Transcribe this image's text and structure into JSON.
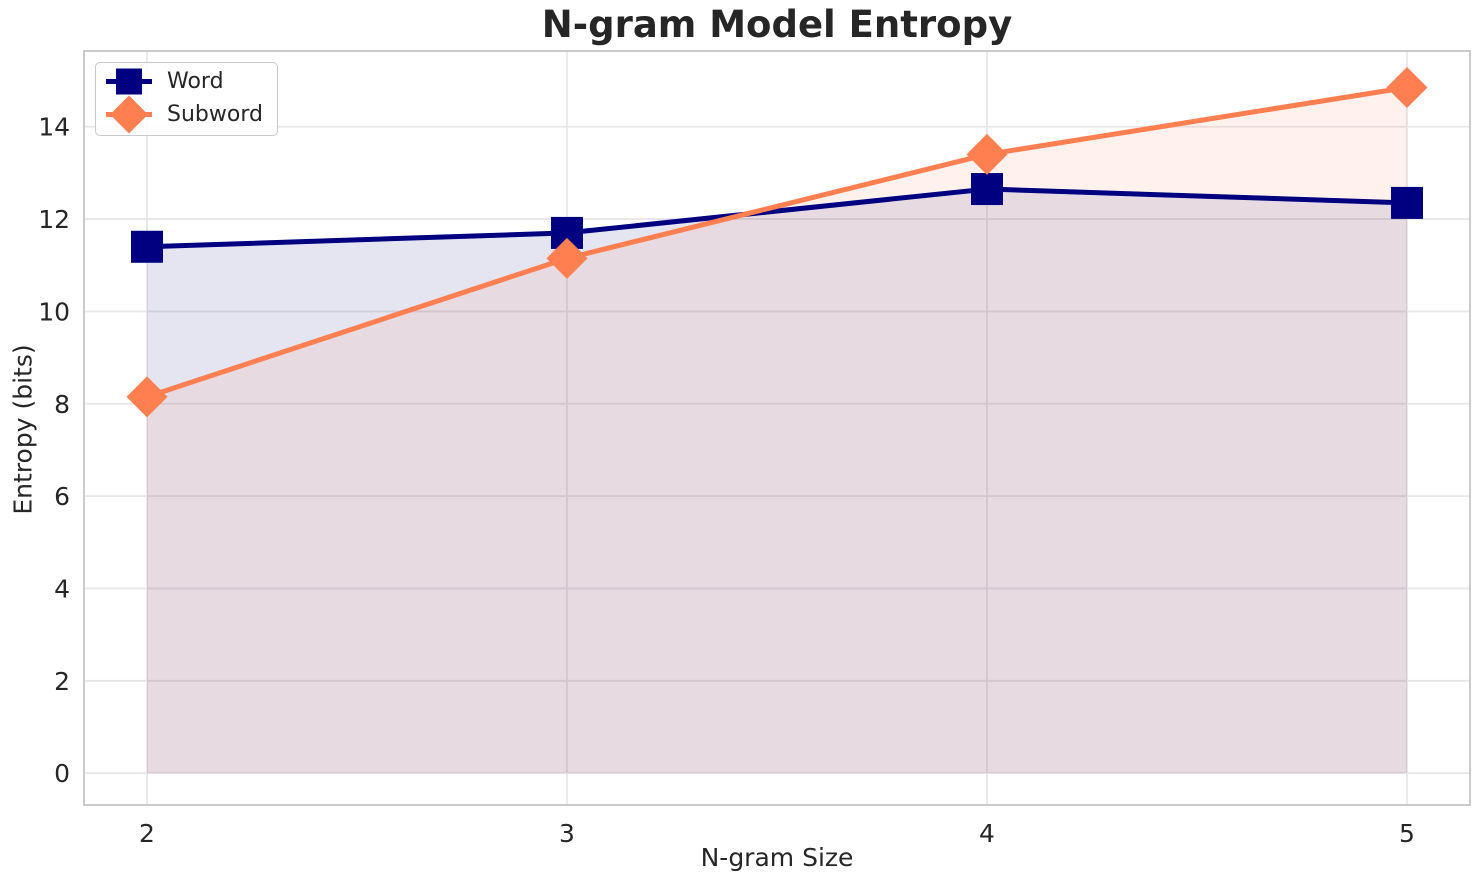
{
  "title": "N-gram Model Entropy",
  "chart_data": {
    "type": "line",
    "title": "N-gram Model Entropy",
    "xlabel": "N-gram Size",
    "ylabel": "Entropy (bits)",
    "x": [
      2,
      3,
      4,
      5
    ],
    "series": [
      {
        "name": "Word",
        "values": [
          11.4,
          11.7,
          12.65,
          12.35
        ],
        "color": "#000080",
        "marker": "square"
      },
      {
        "name": "Subword",
        "values": [
          8.15,
          11.15,
          13.4,
          14.85
        ],
        "color": "#ff7f50",
        "marker": "diamond"
      }
    ],
    "xticks": [
      2,
      3,
      4,
      5
    ],
    "yticks": [
      0,
      2,
      4,
      6,
      8,
      10,
      12,
      14
    ],
    "xlim": [
      1.85,
      5.15
    ],
    "ylim": [
      -0.69,
      15.64
    ],
    "grid": true,
    "legend_position": "upper left",
    "area_fill": true,
    "fill_baseline": 0,
    "fill_opacity": 0.1,
    "line_width": 5
  },
  "style": {
    "grid_color": "#e8e6e8",
    "spine_color": "#cbcbcb",
    "text_color": "#262626",
    "background": "#ffffff"
  }
}
